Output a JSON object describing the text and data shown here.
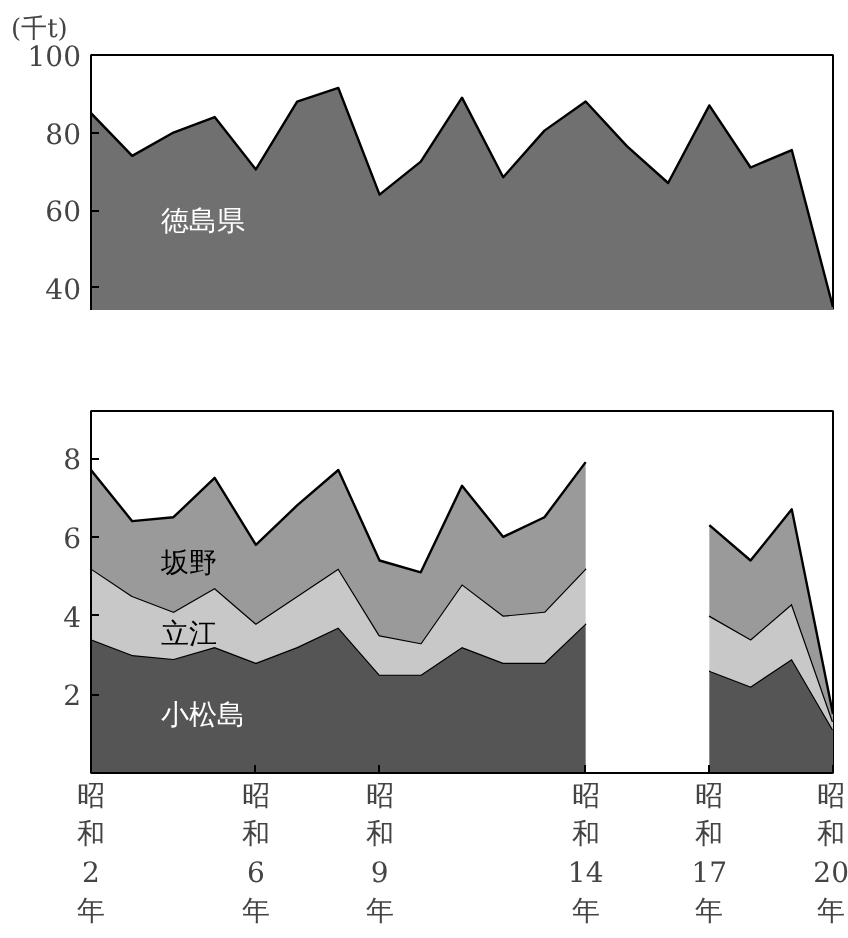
{
  "chart_data": [
    {
      "type": "area",
      "categories": [
        "昭和2年",
        null,
        null,
        null,
        "昭和6年",
        null,
        null,
        "昭和9年",
        null,
        null,
        null,
        null,
        "昭和14年",
        null,
        null,
        "昭和17年",
        null,
        null,
        "昭和20年"
      ],
      "ylabel": "(千t)",
      "ylim": [
        34,
        100
      ],
      "yticks": [
        40,
        60,
        80,
        100
      ],
      "tick_labels": "y",
      "series": [
        {
          "name": "徳島県",
          "color": "#707070",
          "values": [
            85,
            74,
            80,
            84,
            70.5,
            88,
            91.5,
            64,
            72.5,
            89,
            68.5,
            80.5,
            88,
            76.5,
            67,
            87,
            71,
            75.5,
            35
          ]
        }
      ]
    },
    {
      "type": "area",
      "stacked": true,
      "categories": [
        "昭和2年",
        null,
        null,
        null,
        "昭和6年",
        null,
        null,
        "昭和9年",
        null,
        null,
        null,
        null,
        "昭和14年",
        null,
        null,
        "昭和17年",
        null,
        null,
        "昭和20年"
      ],
      "ylim": [
        0,
        9.2
      ],
      "yticks": [
        2,
        4,
        6,
        8
      ],
      "series": [
        {
          "name": "小松島",
          "color": "#555555",
          "values": [
            3.4,
            3.0,
            2.9,
            3.2,
            2.8,
            3.2,
            3.7,
            2.5,
            2.5,
            3.2,
            2.8,
            2.8,
            3.8,
            null,
            null,
            2.6,
            2.2,
            2.9,
            1.1
          ]
        },
        {
          "name": "立江",
          "color": "#c8c8c8",
          "values": [
            1.8,
            1.5,
            1.2,
            1.5,
            1.0,
            1.3,
            1.5,
            1.0,
            0.8,
            1.6,
            1.2,
            1.3,
            1.4,
            null,
            null,
            1.4,
            1.2,
            1.4,
            0.2
          ]
        },
        {
          "name": "坂野",
          "color": "#9a9a9a",
          "values": [
            2.5,
            1.9,
            2.4,
            2.8,
            2.0,
            2.3,
            2.5,
            1.9,
            1.8,
            2.5,
            2.0,
            2.4,
            2.7,
            null,
            null,
            2.3,
            2.0,
            2.4,
            0.2
          ]
        }
      ]
    }
  ]
}
